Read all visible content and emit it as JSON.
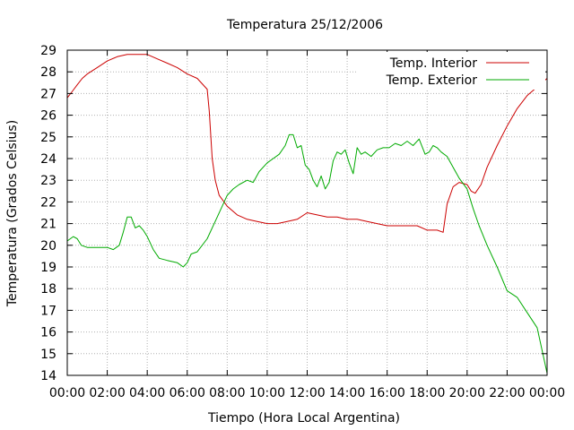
{
  "chart_data": {
    "type": "line",
    "title": "Temperatura 25/12/2006",
    "xlabel": "Tiempo (Hora Local Argentina)",
    "ylabel": "Temperatura (Grados Celsius)",
    "xlim": [
      0,
      24
    ],
    "ylim": [
      14,
      29
    ],
    "x_tick_labels": [
      "00:00",
      "02:00",
      "04:00",
      "06:00",
      "08:00",
      "10:00",
      "12:00",
      "14:00",
      "16:00",
      "18:00",
      "20:00",
      "22:00",
      "00:00"
    ],
    "y_tick_labels": [
      "14",
      "15",
      "16",
      "17",
      "18",
      "19",
      "20",
      "21",
      "22",
      "23",
      "24",
      "25",
      "26",
      "27",
      "28",
      "29"
    ],
    "grid": true,
    "legend_position": "top-right",
    "series": [
      {
        "name": "Temp. Interior",
        "color": "#cc0000",
        "x": [
          0,
          0.25,
          0.5,
          0.75,
          1,
          1.5,
          2,
          2.5,
          3,
          3.5,
          4,
          4.5,
          5,
          5.5,
          6,
          6.5,
          7,
          7.1,
          7.25,
          7.4,
          7.6,
          8,
          8.5,
          9,
          9.5,
          10,
          10.5,
          11,
          11.5,
          12,
          12.5,
          13,
          13.5,
          14,
          14.5,
          15,
          15.5,
          16,
          16.5,
          17,
          17.5,
          18,
          18.5,
          18.8,
          19,
          19.3,
          19.6,
          20,
          20.2,
          20.4,
          20.7,
          21,
          21.5,
          22,
          22.5,
          23,
          23.5,
          24
        ],
        "y": [
          26.8,
          27.1,
          27.4,
          27.7,
          27.9,
          28.2,
          28.5,
          28.7,
          28.8,
          28.8,
          28.8,
          28.6,
          28.4,
          28.2,
          27.9,
          27.7,
          27.2,
          26.2,
          24.0,
          23.0,
          22.3,
          21.8,
          21.4,
          21.2,
          21.1,
          21.0,
          21.0,
          21.1,
          21.2,
          21.5,
          21.4,
          21.3,
          21.3,
          21.2,
          21.2,
          21.1,
          21.0,
          20.9,
          20.9,
          20.9,
          20.9,
          20.7,
          20.7,
          20.6,
          21.9,
          22.7,
          22.9,
          22.8,
          22.5,
          22.4,
          22.8,
          23.6,
          24.6,
          25.5,
          26.3,
          26.9,
          27.3,
          27.7
        ]
      },
      {
        "name": "Temp. Exterior",
        "color": "#00aa00",
        "x": [
          0,
          0.3,
          0.5,
          0.7,
          1,
          1.5,
          2,
          2.3,
          2.6,
          2.8,
          3,
          3.2,
          3.4,
          3.6,
          3.8,
          4,
          4.3,
          4.6,
          5,
          5.5,
          5.8,
          6,
          6.2,
          6.5,
          7,
          7.5,
          8,
          8.3,
          8.6,
          9,
          9.3,
          9.6,
          10,
          10.3,
          10.6,
          10.9,
          11.1,
          11.3,
          11.5,
          11.7,
          11.9,
          12.1,
          12.3,
          12.5,
          12.7,
          12.9,
          13.1,
          13.3,
          13.5,
          13.7,
          13.9,
          14.1,
          14.3,
          14.5,
          14.7,
          14.9,
          15.2,
          15.5,
          15.8,
          16.1,
          16.4,
          16.7,
          17.0,
          17.3,
          17.6,
          17.9,
          18.1,
          18.3,
          18.5,
          18.7,
          19.0,
          19.3,
          19.6,
          20.0,
          20.3,
          20.6,
          21.0,
          21.5,
          22.0,
          22.5,
          23.0,
          23.5,
          24.0
        ],
        "y": [
          20.2,
          20.4,
          20.3,
          20.0,
          19.9,
          19.9,
          19.9,
          19.8,
          20.0,
          20.6,
          21.3,
          21.3,
          20.8,
          20.9,
          20.7,
          20.4,
          19.8,
          19.4,
          19.3,
          19.2,
          19.0,
          19.2,
          19.6,
          19.7,
          20.3,
          21.3,
          22.3,
          22.6,
          22.8,
          23.0,
          22.9,
          23.4,
          23.8,
          24.0,
          24.2,
          24.6,
          25.1,
          25.1,
          24.5,
          24.6,
          23.7,
          23.5,
          23.0,
          22.7,
          23.2,
          22.6,
          22.9,
          23.9,
          24.3,
          24.2,
          24.4,
          23.8,
          23.3,
          24.5,
          24.2,
          24.3,
          24.1,
          24.4,
          24.5,
          24.5,
          24.7,
          24.6,
          24.8,
          24.6,
          24.9,
          24.2,
          24.3,
          24.6,
          24.5,
          24.3,
          24.1,
          23.6,
          23.1,
          22.6,
          21.7,
          20.9,
          20.0,
          19.0,
          17.9,
          17.6,
          16.9,
          16.2,
          14.1
        ]
      }
    ]
  }
}
